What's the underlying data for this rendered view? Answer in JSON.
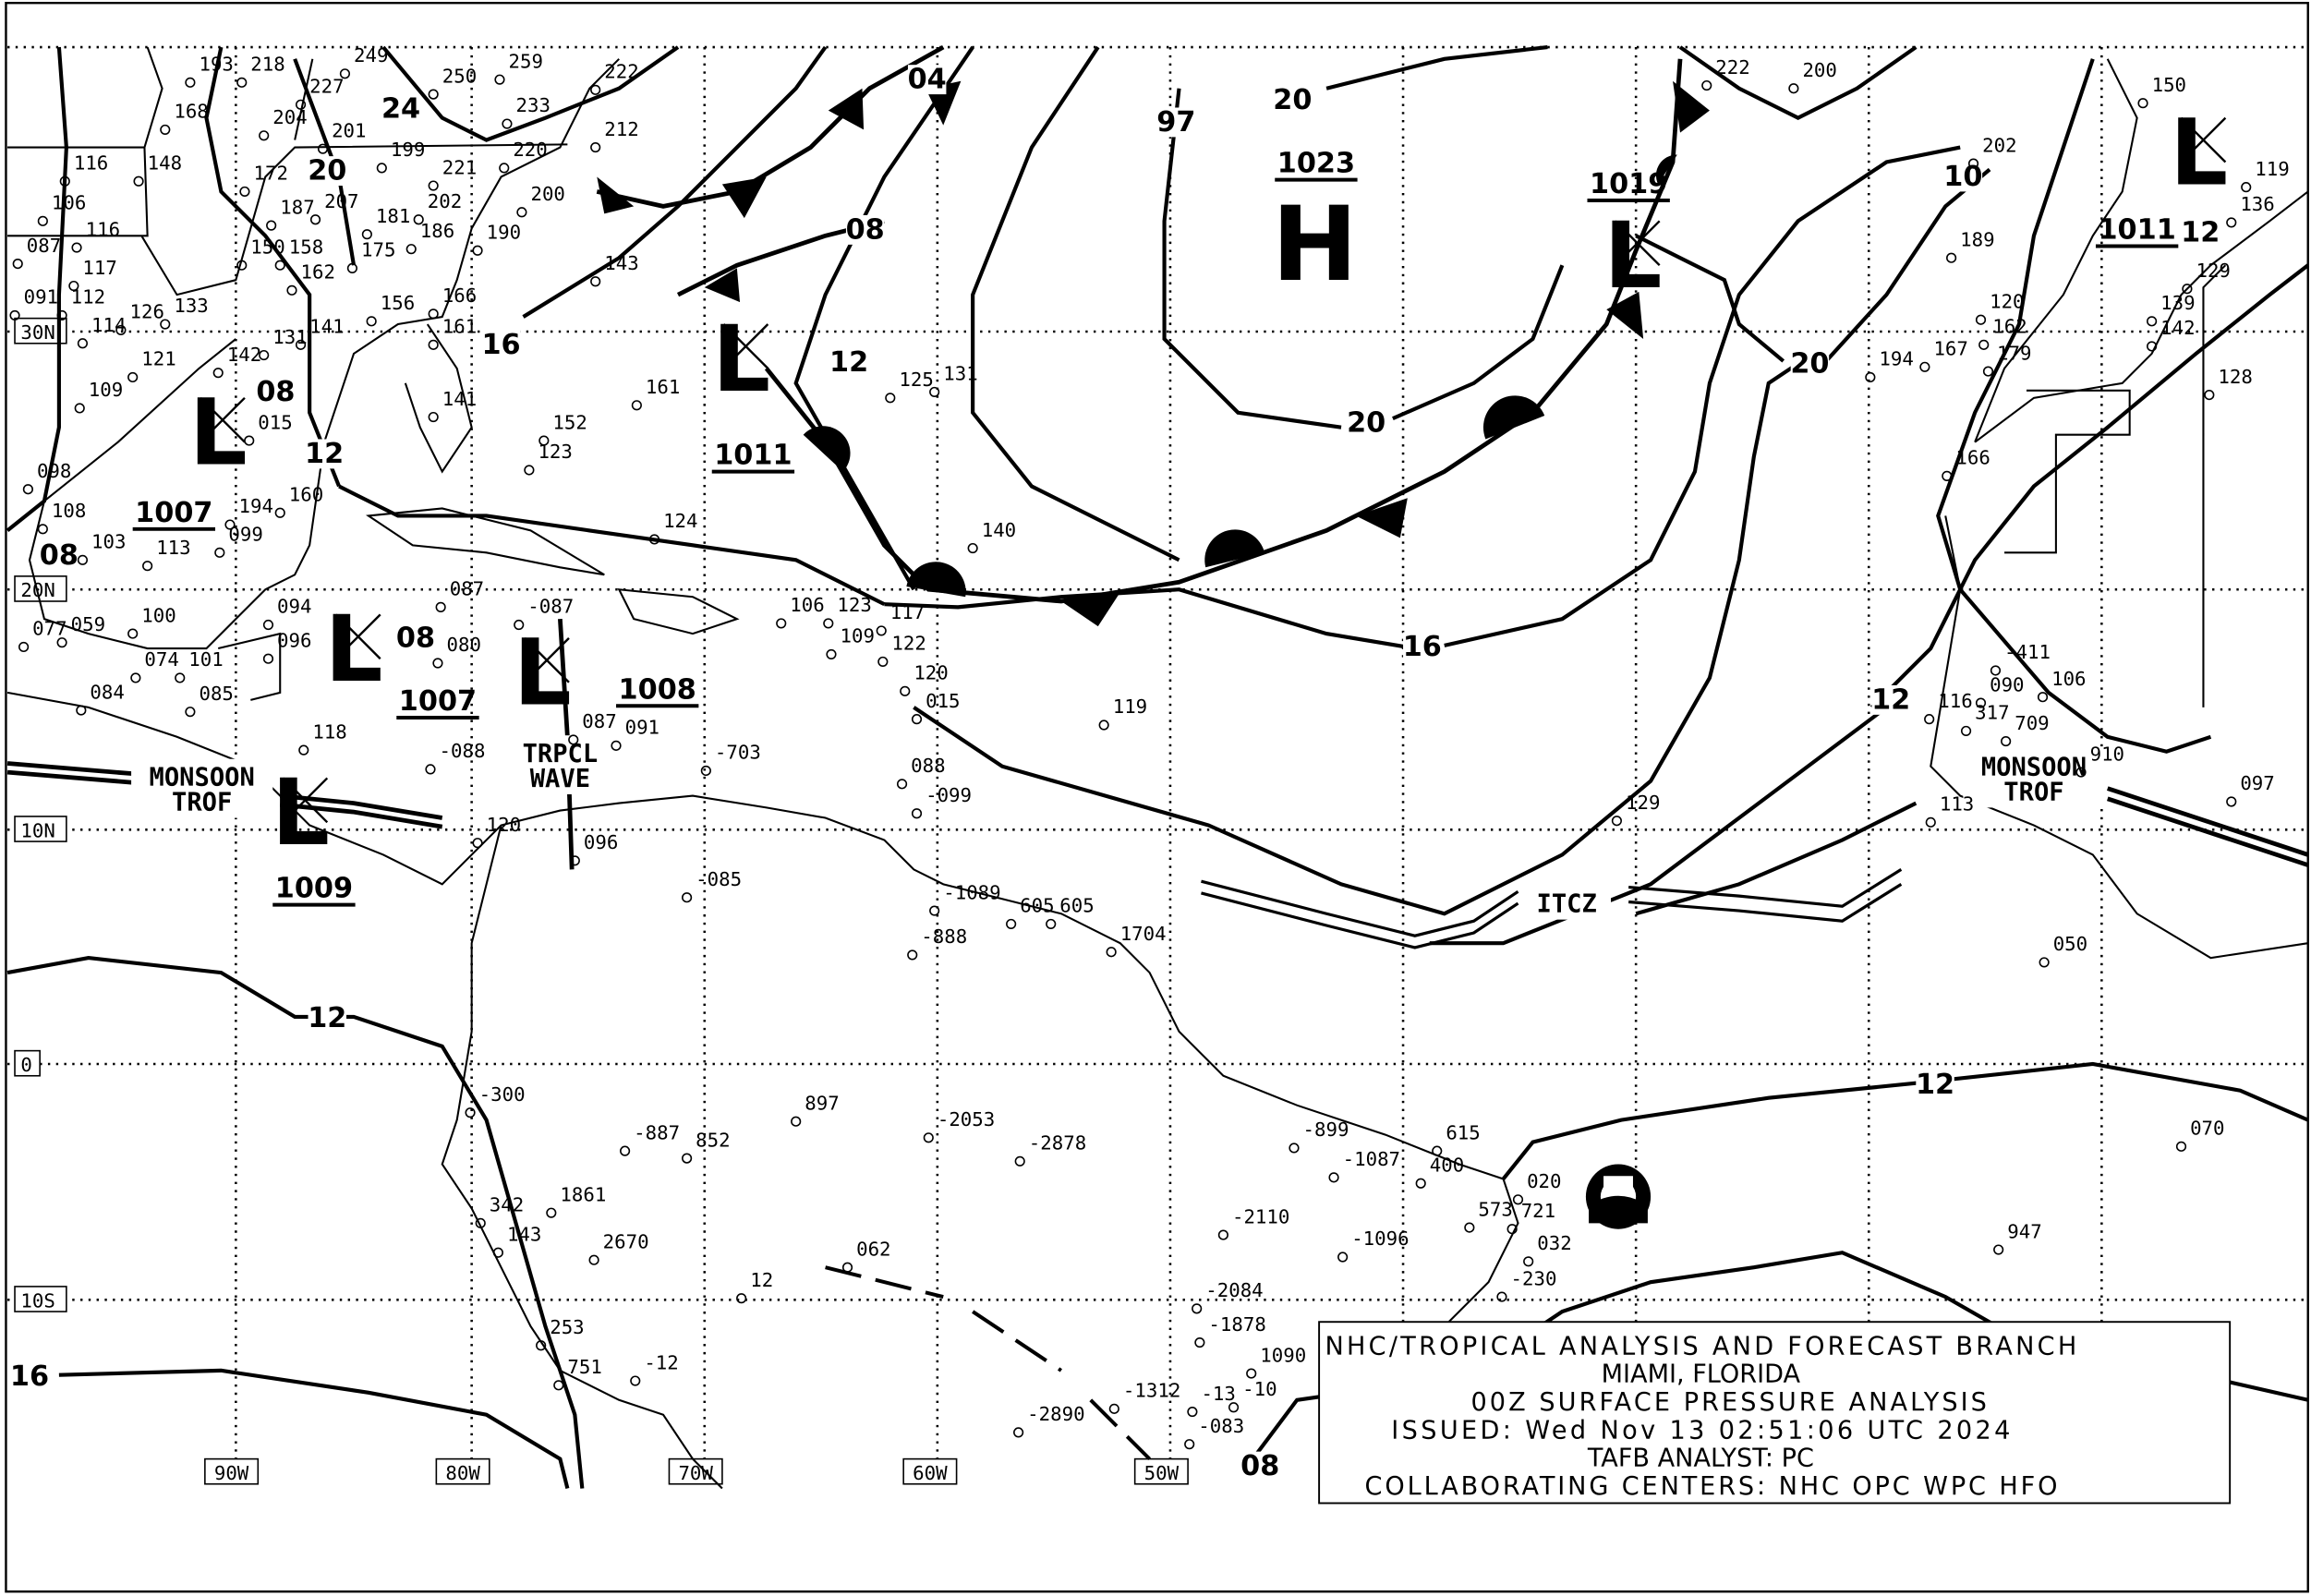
{
  "map": {
    "colors": {
      "ink": "#000000",
      "background": "#ffffff"
    },
    "latitude_labels": [
      "30N",
      "20N",
      "10N",
      "0",
      "10S"
    ],
    "longitude_labels": [
      "90W",
      "80W",
      "70W",
      "60W",
      "50W"
    ],
    "pressure_centers": [
      {
        "type": "H",
        "pressure": "1023"
      },
      {
        "type": "L",
        "pressure": "1019"
      },
      {
        "type": "L",
        "pressure": "1011"
      },
      {
        "type": "L",
        "pressure": "1007"
      },
      {
        "type": "L",
        "pressure": "1007"
      },
      {
        "type": "L",
        "pressure": "1008"
      },
      {
        "type": "L",
        "pressure": "1009"
      },
      {
        "type": "L",
        "pressure": "1011"
      }
    ],
    "isobar_labels": [
      "24",
      "20",
      "16",
      "12",
      "12",
      "08",
      "04",
      "97",
      "20",
      "20",
      "16",
      "20",
      "10",
      "12",
      "12",
      "12",
      "16",
      "16",
      "08",
      "08",
      "08",
      "08",
      "12"
    ],
    "features": {
      "monsoon_trough_left": [
        "MONSOON",
        "TROF"
      ],
      "monsoon_trough_right": [
        "MONSOON",
        "TROF"
      ],
      "tropical_wave": [
        "TRPCL",
        "WAVE"
      ],
      "itcz": "ITCZ"
    },
    "stations": [
      "193",
      "218",
      "249",
      "250",
      "259",
      "222",
      "168",
      "227",
      "204",
      "212",
      "233",
      "116",
      "148",
      "201",
      "199",
      "220",
      "221",
      "106",
      "172",
      "187",
      "207",
      "202",
      "200",
      "087",
      "116",
      "181",
      "175",
      "186",
      "190",
      "117",
      "150",
      "158",
      "162",
      "143",
      "091",
      "112",
      "126",
      "133",
      "156",
      "166",
      "161",
      "114",
      "121",
      "131",
      "141",
      "142",
      "161",
      "125",
      "131",
      "109",
      "141",
      "152",
      "123",
      "098",
      "015",
      "113",
      "160",
      "194",
      "108",
      "103",
      "099",
      "124",
      "140",
      "100",
      "101",
      "094",
      "096",
      "087",
      "080",
      "077",
      "059",
      "074",
      "084",
      "085",
      "118",
      "-087",
      "091",
      "106",
      "123",
      "117",
      "109",
      "122",
      "120",
      "015",
      "-088",
      "087",
      "-703",
      "088",
      "-099",
      "096",
      "120",
      "119",
      "129",
      "222",
      "200",
      "202",
      "189",
      "194",
      "167",
      "179",
      "162",
      "120",
      "166",
      "150",
      "119",
      "136",
      "129",
      "139",
      "142",
      "128",
      "-411",
      "106",
      "090",
      "116",
      "317",
      "709",
      "910",
      "097",
      "113",
      "050",
      "070",
      "947",
      "062",
      "-085",
      "-1089",
      "605",
      "605",
      "1704",
      "-888",
      "897",
      "-2053",
      "-2878",
      "852",
      "-887",
      "-300",
      "342",
      "143",
      "1861",
      "2670",
      "-2110",
      "-1087",
      "-1096",
      "-899",
      "400",
      "615",
      "573",
      "721",
      "020",
      "032",
      "-230",
      "-2084",
      "-1878",
      "1090",
      "-10",
      "-2890",
      "-1312",
      "-083",
      "-13",
      "253",
      "751",
      "-12",
      "12"
    ]
  },
  "info_box": {
    "line1": "NHC/TROPICAL ANALYSIS AND FORECAST BRANCH",
    "line2": "MIAMI, FLORIDA",
    "line3": "00Z SURFACE PRESSURE ANALYSIS",
    "line4": "ISSUED: Wed Nov 13 02:51:06 UTC 2024",
    "line5": "TAFB ANALYST: PC",
    "line6": "COLLABORATING CENTERS: NHC OPC WPC HFO"
  },
  "logo": {
    "name": "noaa-logo",
    "text": "NOAA"
  }
}
